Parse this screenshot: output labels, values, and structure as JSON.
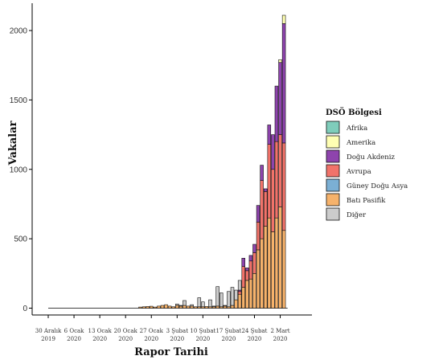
{
  "chart_data": {
    "type": "bar",
    "stacked": true,
    "xlabel": "Rapor Tarihi",
    "ylabel": "Vakalar",
    "ylim": [
      0,
      2150
    ],
    "yticks": [
      0,
      500,
      1000,
      1500,
      2000
    ],
    "x_ticks": [
      {
        "day": 0,
        "line1": "30 Aralık",
        "line2": "2019"
      },
      {
        "day": 7,
        "line1": "6 Ocak",
        "line2": "2020"
      },
      {
        "day": 14,
        "line1": "13 Ocak",
        "line2": "2020"
      },
      {
        "day": 21,
        "line1": "20 Ocak",
        "line2": "2020"
      },
      {
        "day": 28,
        "line1": "27 Ocak",
        "line2": "2020"
      },
      {
        "day": 35,
        "line1": "3 Şubat",
        "line2": "2020"
      },
      {
        "day": 42,
        "line1": "10 Şubat",
        "line2": "2020"
      },
      {
        "day": 49,
        "line1": "17 Şubat",
        "line2": "2020"
      },
      {
        "day": 56,
        "line1": "24 Şubat",
        "line2": "2020"
      },
      {
        "day": 63,
        "line1": "2 Mart",
        "line2": "2020"
      }
    ],
    "legend": {
      "title": "DSÖ Bölgesi",
      "placement": "right",
      "entries": [
        {
          "name": "Afrika",
          "color": "#7FCDBB"
        },
        {
          "name": "Amerika",
          "color": "#FFFFB3"
        },
        {
          "name": "Doğu Akdeniz",
          "color": "#8E44AD"
        },
        {
          "name": "Avrupa",
          "color": "#F1736A"
        },
        {
          "name": "Güney Doğu Asya",
          "color": "#7BAFD4"
        },
        {
          "name": "Batı Pasifik",
          "color": "#F6B26B"
        },
        {
          "name": "Diğer",
          "color": "#CCCCCC"
        }
      ]
    },
    "series_order": [
      "Batı Pasifik",
      "Güney Doğu Asya",
      "Avrupa",
      "Doğu Akdeniz",
      "Amerika",
      "Afrika",
      "Diğer"
    ],
    "bars": [
      {
        "day": 25,
        "Batı Pasifik": 8
      },
      {
        "day": 26,
        "Batı Pasifik": 10
      },
      {
        "day": 27,
        "Batı Pasifik": 12
      },
      {
        "day": 28,
        "Batı Pasifik": 14
      },
      {
        "day": 29,
        "Batı Pasifik": 8
      },
      {
        "day": 30,
        "Batı Pasifik": 15
      },
      {
        "day": 31,
        "Batı Pasifik": 20
      },
      {
        "day": 32,
        "Batı Pasifik": 25
      },
      {
        "day": 33,
        "Batı Pasifik": 15
      },
      {
        "day": 34,
        "Batı Pasifik": 10
      },
      {
        "day": 35,
        "Batı Pasifik": 20,
        "Diğer": 10
      },
      {
        "day": 36,
        "Batı Pasifik": 15,
        "Diğer": 5
      },
      {
        "day": 37,
        "Batı Pasifik": 20,
        "Diğer": 35
      },
      {
        "day": 38,
        "Batı Pasifik": 15
      },
      {
        "day": 39,
        "Batı Pasifik": 15,
        "Diğer": 10
      },
      {
        "day": 40,
        "Batı Pasifik": 10
      },
      {
        "day": 41,
        "Batı Pasifik": 10,
        "Diğer": 65
      },
      {
        "day": 42,
        "Batı Pasifik": 10,
        "Diğer": 35
      },
      {
        "day": 43,
        "Batı Pasifik": 12
      },
      {
        "day": 44,
        "Batı Pasifik": 10,
        "Diğer": 50
      },
      {
        "day": 45,
        "Batı Pasifik": 10,
        "Diğer": 5
      },
      {
        "day": 46,
        "Batı Pasifik": 15,
        "Diğer": 140
      },
      {
        "day": 47,
        "Batı Pasifik": 10,
        "Diğer": 100
      },
      {
        "day": 48,
        "Batı Pasifik": 15,
        "Diğer": 5
      },
      {
        "day": 49,
        "Batı Pasifik": 10,
        "Diğer": 110
      },
      {
        "day": 50,
        "Batı Pasifik": 20,
        "Diğer": 130
      },
      {
        "day": 51,
        "Batı Pasifik": 60,
        "Diğer": 70
      },
      {
        "day": 52,
        "Batı Pasifik": 100,
        "Avrupa": 20,
        "Doğu Akdeniz": 10,
        "Diğer": 70
      },
      {
        "day": 53,
        "Batı Pasifik": 150,
        "Avrupa": 150,
        "Doğu Akdeniz": 60
      },
      {
        "day": 54,
        "Batı Pasifik": 200,
        "Avrupa": 70,
        "Doğu Akdeniz": 20
      },
      {
        "day": 55,
        "Batı Pasifik": 210,
        "Avrupa": 130,
        "Doğu Akdeniz": 40
      },
      {
        "day": 56,
        "Batı Pasifik": 250,
        "Avrupa": 150,
        "Doğu Akdeniz": 60
      },
      {
        "day": 57,
        "Batı Pasifik": 420,
        "Avrupa": 200,
        "Doğu Akdeniz": 120
      },
      {
        "day": 58,
        "Batı Pasifik": 500,
        "Avrupa": 420,
        "Doğu Akdeniz": 110
      },
      {
        "day": 59,
        "Batı Pasifik": 590,
        "Avrupa": 250,
        "Doğu Akdeniz": 20
      },
      {
        "day": 60,
        "Batı Pasifik": 650,
        "Avrupa": 530,
        "Doğu Akdeniz": 140
      },
      {
        "day": 61,
        "Batı Pasifik": 550,
        "Avrupa": 450,
        "Doğu Akdeniz": 250
      },
      {
        "day": 62,
        "Batı Pasifik": 650,
        "Avrupa": 550,
        "Doğu Akdeniz": 400
      },
      {
        "day": 63,
        "Batı Pasifik": 730,
        "Avrupa": 520,
        "Doğu Akdeniz": 520,
        "Amerika": 20
      },
      {
        "day": 64,
        "Batı Pasifik": 560,
        "Avrupa": 630,
        "Doğu Akdeniz": 860,
        "Amerika": 60
      }
    ]
  }
}
